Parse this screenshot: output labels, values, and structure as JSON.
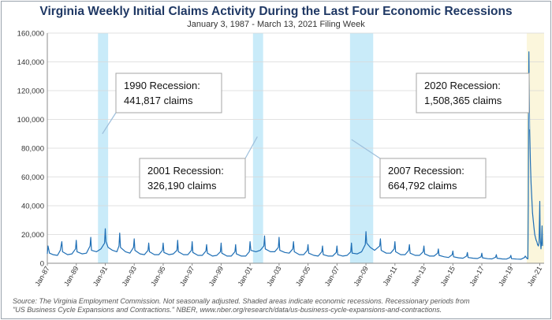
{
  "chart_data": {
    "type": "line",
    "title": "Virginia Weekly Initial Claims Activity During the Last Four Economic Recessions",
    "subtitle": "January 3, 1987 - March 13, 2021 Filing Week",
    "ylim": [
      0,
      160000
    ],
    "yticks": [
      0,
      20000,
      40000,
      60000,
      80000,
      100000,
      120000,
      140000,
      160000
    ],
    "ytick_labels": [
      "0",
      "20,000",
      "40,000",
      "60,000",
      "80,000",
      "100,000",
      "120,000",
      "140,000",
      "160,000"
    ],
    "xlim": [
      1987.0,
      2021.3
    ],
    "xticks": [
      1987,
      1989,
      1991,
      1993,
      1995,
      1997,
      1999,
      2001,
      2003,
      2005,
      2007,
      2009,
      2011,
      2013,
      2015,
      2017,
      2019,
      2021
    ],
    "xtick_labels": [
      "Jan-87",
      "Jan-89",
      "Jan-91",
      "Jan-93",
      "Jan-95",
      "Jan-97",
      "Jan-99",
      "Jan-01",
      "Jan-03",
      "Jan-05",
      "Jan-07",
      "Jan-09",
      "Jan-11",
      "Jan-13",
      "Jan-15",
      "Jan-17",
      "Jan-19",
      "Jan-21"
    ],
    "recessions": [
      {
        "start": 1990.5,
        "end": 1991.2
      },
      {
        "start": 2001.2,
        "end": 2001.9
      },
      {
        "start": 2007.9,
        "end": 2009.5
      },
      {
        "start": 2020.1,
        "end": 2021.3
      }
    ],
    "series": [
      {
        "name": "",
        "color": "#1f6fb5",
        "points": [
          [
            1987.0,
            6500
          ],
          [
            1987.05,
            12000
          ],
          [
            1987.15,
            7000
          ],
          [
            1987.4,
            6000
          ],
          [
            1987.7,
            5500
          ],
          [
            1987.9,
            9000
          ],
          [
            1988.0,
            15000
          ],
          [
            1988.05,
            8000
          ],
          [
            1988.4,
            6000
          ],
          [
            1988.7,
            6500
          ],
          [
            1988.95,
            10000
          ],
          [
            1989.0,
            16000
          ],
          [
            1989.05,
            8000
          ],
          [
            1989.4,
            6500
          ],
          [
            1989.7,
            7000
          ],
          [
            1989.95,
            12000
          ],
          [
            1990.0,
            18000
          ],
          [
            1990.05,
            9000
          ],
          [
            1990.4,
            8000
          ],
          [
            1990.7,
            10000
          ],
          [
            1990.95,
            14000
          ],
          [
            1991.0,
            24000
          ],
          [
            1991.05,
            15000
          ],
          [
            1991.2,
            11000
          ],
          [
            1991.5,
            9000
          ],
          [
            1991.8,
            8000
          ],
          [
            1991.95,
            12000
          ],
          [
            1992.0,
            21000
          ],
          [
            1992.05,
            11000
          ],
          [
            1992.4,
            8000
          ],
          [
            1992.7,
            7000
          ],
          [
            1992.95,
            11000
          ],
          [
            1993.0,
            17000
          ],
          [
            1993.05,
            9000
          ],
          [
            1993.4,
            6500
          ],
          [
            1993.7,
            6000
          ],
          [
            1993.95,
            9000
          ],
          [
            1994.0,
            14000
          ],
          [
            1994.05,
            8000
          ],
          [
            1994.4,
            6000
          ],
          [
            1994.7,
            6000
          ],
          [
            1994.95,
            9000
          ],
          [
            1995.0,
            14000
          ],
          [
            1995.05,
            7500
          ],
          [
            1995.4,
            6000
          ],
          [
            1995.7,
            6500
          ],
          [
            1995.95,
            9000
          ],
          [
            1996.0,
            16000
          ],
          [
            1996.05,
            8000
          ],
          [
            1996.4,
            6000
          ],
          [
            1996.7,
            6000
          ],
          [
            1996.95,
            9000
          ],
          [
            1997.0,
            15000
          ],
          [
            1997.05,
            7500
          ],
          [
            1997.4,
            5500
          ],
          [
            1997.7,
            5500
          ],
          [
            1997.95,
            8500
          ],
          [
            1998.0,
            13000
          ],
          [
            1998.05,
            7000
          ],
          [
            1998.4,
            5000
          ],
          [
            1998.7,
            5500
          ],
          [
            1998.95,
            8000
          ],
          [
            1999.0,
            14000
          ],
          [
            1999.05,
            7000
          ],
          [
            1999.4,
            5000
          ],
          [
            1999.7,
            5000
          ],
          [
            1999.95,
            8000
          ],
          [
            2000.0,
            13000
          ],
          [
            2000.05,
            6500
          ],
          [
            2000.4,
            5000
          ],
          [
            2000.7,
            5000
          ],
          [
            2000.95,
            8000
          ],
          [
            2001.0,
            15000
          ],
          [
            2001.05,
            9000
          ],
          [
            2001.4,
            8000
          ],
          [
            2001.7,
            9000
          ],
          [
            2001.95,
            12000
          ],
          [
            2002.0,
            19000
          ],
          [
            2002.05,
            10000
          ],
          [
            2002.4,
            8000
          ],
          [
            2002.7,
            8000
          ],
          [
            2002.95,
            11000
          ],
          [
            2003.0,
            18000
          ],
          [
            2003.05,
            9000
          ],
          [
            2003.4,
            7500
          ],
          [
            2003.7,
            7000
          ],
          [
            2003.95,
            10000
          ],
          [
            2004.0,
            15000
          ],
          [
            2004.05,
            8000
          ],
          [
            2004.4,
            6000
          ],
          [
            2004.7,
            6000
          ],
          [
            2004.95,
            9000
          ],
          [
            2005.0,
            13000
          ],
          [
            2005.05,
            7000
          ],
          [
            2005.4,
            5500
          ],
          [
            2005.7,
            5000
          ],
          [
            2005.95,
            8000
          ],
          [
            2006.0,
            12000
          ],
          [
            2006.05,
            6000
          ],
          [
            2006.4,
            5000
          ],
          [
            2006.7,
            5000
          ],
          [
            2006.95,
            7500
          ],
          [
            2007.0,
            12000
          ],
          [
            2007.05,
            6000
          ],
          [
            2007.4,
            5000
          ],
          [
            2007.7,
            5500
          ],
          [
            2007.95,
            8000
          ],
          [
            2008.0,
            14000
          ],
          [
            2008.05,
            7000
          ],
          [
            2008.4,
            6500
          ],
          [
            2008.7,
            8000
          ],
          [
            2008.95,
            13000
          ],
          [
            2009.0,
            22000
          ],
          [
            2009.05,
            14000
          ],
          [
            2009.3,
            11000
          ],
          [
            2009.6,
            9000
          ],
          [
            2009.95,
            12000
          ],
          [
            2010.0,
            17000
          ],
          [
            2010.05,
            9000
          ],
          [
            2010.4,
            7000
          ],
          [
            2010.7,
            7000
          ],
          [
            2010.95,
            10000
          ],
          [
            2011.0,
            15000
          ],
          [
            2011.05,
            8000
          ],
          [
            2011.4,
            6000
          ],
          [
            2011.7,
            6000
          ],
          [
            2011.95,
            9000
          ],
          [
            2012.0,
            13000
          ],
          [
            2012.05,
            7000
          ],
          [
            2012.4,
            5500
          ],
          [
            2012.7,
            5500
          ],
          [
            2012.95,
            8000
          ],
          [
            2013.0,
            12000
          ],
          [
            2013.05,
            6500
          ],
          [
            2013.4,
            5000
          ],
          [
            2013.7,
            5000
          ],
          [
            2013.95,
            7000
          ],
          [
            2014.0,
            10000
          ],
          [
            2014.05,
            5500
          ],
          [
            2014.4,
            4500
          ],
          [
            2014.7,
            4000
          ],
          [
            2014.95,
            6000
          ],
          [
            2015.0,
            8500
          ],
          [
            2015.05,
            4500
          ],
          [
            2015.4,
            3800
          ],
          [
            2015.7,
            3500
          ],
          [
            2015.95,
            5000
          ],
          [
            2016.0,
            7500
          ],
          [
            2016.05,
            4000
          ],
          [
            2016.4,
            3500
          ],
          [
            2016.7,
            3300
          ],
          [
            2016.95,
            4500
          ],
          [
            2017.0,
            7000
          ],
          [
            2017.05,
            3800
          ],
          [
            2017.4,
            3200
          ],
          [
            2017.7,
            3000
          ],
          [
            2017.95,
            4200
          ],
          [
            2018.0,
            6000
          ],
          [
            2018.05,
            3500
          ],
          [
            2018.4,
            3000
          ],
          [
            2018.7,
            2900
          ],
          [
            2018.95,
            4000
          ],
          [
            2019.0,
            5500
          ],
          [
            2019.05,
            3200
          ],
          [
            2019.4,
            2900
          ],
          [
            2019.7,
            2800
          ],
          [
            2019.95,
            4000
          ],
          [
            2020.0,
            5000
          ],
          [
            2020.1,
            3500
          ],
          [
            2020.18,
            3000
          ],
          [
            2020.21,
            46000
          ],
          [
            2020.23,
            112000
          ],
          [
            2020.25,
            147000
          ],
          [
            2020.27,
            120000
          ],
          [
            2020.3,
            95000
          ],
          [
            2020.35,
            70000
          ],
          [
            2020.4,
            55000
          ],
          [
            2020.45,
            45000
          ],
          [
            2020.5,
            35000
          ],
          [
            2020.55,
            30000
          ],
          [
            2020.6,
            25000
          ],
          [
            2020.65,
            20000
          ],
          [
            2020.7,
            18000
          ],
          [
            2020.75,
            16000
          ],
          [
            2020.8,
            15000
          ],
          [
            2020.85,
            13000
          ],
          [
            2020.9,
            12000
          ],
          [
            2020.95,
            14000
          ],
          [
            2020.98,
            30000
          ],
          [
            2021.0,
            43000
          ],
          [
            2021.03,
            18000
          ],
          [
            2021.08,
            10000
          ],
          [
            2021.12,
            14000
          ],
          [
            2021.16,
            26000
          ],
          [
            2021.19,
            12000
          ]
        ]
      }
    ],
    "annotations": [
      {
        "line1": "1990 Recession:",
        "line2": "441,817 claims",
        "point_x": 1990.8,
        "point_y": 90000
      },
      {
        "line1": "2001 Recession:",
        "line2": "326,190 claims",
        "point_x": 2001.5,
        "point_y": 88000
      },
      {
        "line1": "2007 Recession:",
        "line2": "664,792 claims",
        "point_x": 2008.0,
        "point_y": 86000
      },
      {
        "line1": "2020 Recession:",
        "line2": "1,508,365 claims",
        "point_x": 2020.3,
        "point_y": 93000
      }
    ]
  },
  "source_line1": "Source: The Virginia Employment Commission. Not seasonally adjusted. Shaded areas indicate economic recessions. Recessionary periods from",
  "source_line2": "\"US Business Cycle Expansions and Contractions.\" NBER, www.nber.org/research/data/us-business-cycle-expansions-and-contractions."
}
